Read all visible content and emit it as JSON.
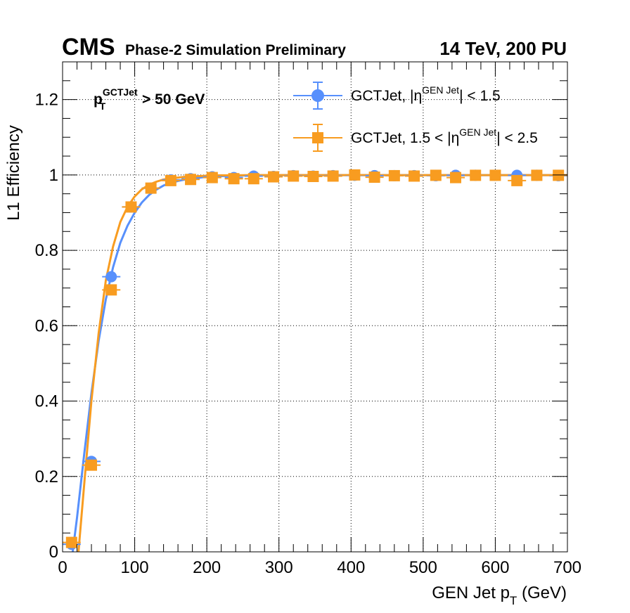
{
  "header": {
    "experiment": "CMS",
    "subtitle": "Phase-2 Simulation Preliminary",
    "energy": "14 TeV, 200 PU"
  },
  "annotation": {
    "main": "p",
    "sup": "GCTJet",
    "sub": "T",
    "rest": " > 50 GeV"
  },
  "chart_data": {
    "type": "scatter",
    "xlabel": {
      "main": "GEN Jet p",
      "sub": "T",
      "rest": " (GeV)"
    },
    "ylabel": "L1 Efficiency",
    "xlim": [
      0,
      700
    ],
    "ylim": [
      0,
      1.3
    ],
    "x_ticks": [
      "0",
      "100",
      "200",
      "300",
      "400",
      "500",
      "600",
      "700"
    ],
    "y_ticks": [
      "0",
      "0.2",
      "0.4",
      "0.6",
      "0.8",
      "1",
      "1.2"
    ],
    "grid": true,
    "legend_position": "top-right",
    "series": [
      {
        "legend": {
          "main": "GCTJet, |η",
          "sup": "GEN Jet",
          "rest": "| < 1.5"
        },
        "color": "#5790fc",
        "marker": "circle",
        "x": [
          12.5,
          40,
          67.5,
          95,
          122.5,
          150,
          177.5,
          207.5,
          237.5,
          265,
          292.5,
          320,
          347.5,
          375,
          405,
          432.5,
          460,
          487.5,
          517.5,
          545,
          572.5,
          600,
          630,
          657.5,
          687.5
        ],
        "y": [
          0.02,
          0.24,
          0.73,
          0.915,
          0.965,
          0.987,
          0.99,
          0.995,
          0.993,
          0.997,
          0.996,
          0.998,
          0.997,
          0.998,
          0.999,
          0.998,
          0.998,
          0.998,
          0.998,
          0.999,
          0.999,
          0.999,
          0.999,
          0.999,
          0.998
        ],
        "fit": {
          "x": [
            14,
            20,
            30,
            40,
            50,
            60,
            70,
            80,
            90,
            100,
            110,
            120,
            130,
            140,
            150,
            160,
            170,
            180,
            190,
            200,
            220,
            240,
            260,
            300,
            700
          ],
          "y": [
            0.0,
            0.09,
            0.26,
            0.42,
            0.56,
            0.67,
            0.755,
            0.82,
            0.865,
            0.9,
            0.927,
            0.947,
            0.961,
            0.972,
            0.979,
            0.984,
            0.988,
            0.991,
            0.993,
            0.995,
            0.997,
            0.998,
            0.999,
            0.9995,
            0.9995
          ]
        }
      },
      {
        "legend": {
          "main": "GCTJet, 1.5 < |η",
          "sup": "GEN Jet",
          "rest": "| < 2.5"
        },
        "color": "#f89c20",
        "marker": "square",
        "x": [
          12.5,
          40,
          67.5,
          95,
          122.5,
          150,
          177.5,
          207.5,
          237.5,
          265,
          292.5,
          320,
          347.5,
          375,
          405,
          432.5,
          460,
          487.5,
          517.5,
          545,
          572.5,
          600,
          630,
          657.5,
          687.5
        ],
        "y": [
          0.025,
          0.23,
          0.695,
          0.915,
          0.965,
          0.985,
          0.988,
          0.993,
          0.99,
          0.99,
          0.995,
          0.997,
          0.996,
          0.997,
          1.0,
          0.994,
          0.998,
          0.997,
          0.999,
          0.993,
          0.999,
          0.999,
          0.985,
          0.999,
          0.999
        ],
        "fit": {
          "x": [
            22,
            30,
            40,
            50,
            60,
            70,
            80,
            90,
            100,
            110,
            120,
            130,
            140,
            150,
            160,
            170,
            180,
            190,
            200,
            220,
            240,
            260,
            300,
            700
          ],
          "y": [
            0.0,
            0.18,
            0.4,
            0.58,
            0.72,
            0.81,
            0.875,
            0.915,
            0.943,
            0.962,
            0.974,
            0.982,
            0.988,
            0.991,
            0.993,
            0.995,
            0.996,
            0.997,
            0.998,
            0.999,
            0.999,
            0.9995,
            0.9995,
            0.9995
          ]
        }
      }
    ]
  }
}
